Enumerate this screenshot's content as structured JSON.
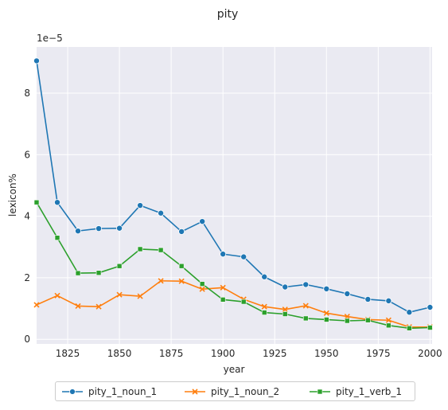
{
  "chart_data": {
    "type": "line",
    "title": "pity",
    "xlabel": "year",
    "ylabel": "lexicon%",
    "y_offset_label": "1e−5",
    "xlim": [
      1810,
      2001
    ],
    "ylim": [
      -0.15,
      9.5
    ],
    "y_scale_exponent": -5,
    "xticks": [
      1825,
      1850,
      1875,
      1900,
      1925,
      1950,
      1975,
      2000
    ],
    "yticks": [
      0,
      2,
      4,
      6,
      8
    ],
    "grid": true,
    "legend_position": "bottom-center",
    "x": [
      1810,
      1820,
      1830,
      1840,
      1850,
      1860,
      1870,
      1880,
      1890,
      1900,
      1910,
      1920,
      1930,
      1940,
      1950,
      1960,
      1970,
      1980,
      1990,
      2000
    ],
    "series": [
      {
        "name": "pity_1_noun_1",
        "color": "#1f77b4",
        "marker": "circle",
        "values": [
          9.05,
          4.45,
          3.52,
          3.6,
          3.61,
          4.35,
          4.1,
          3.5,
          3.83,
          2.77,
          2.68,
          2.03,
          1.7,
          1.78,
          1.64,
          1.48,
          1.3,
          1.25,
          0.88,
          1.04
        ]
      },
      {
        "name": "pity_1_noun_2",
        "color": "#ff7f0e",
        "marker": "x",
        "values": [
          1.12,
          1.42,
          1.08,
          1.06,
          1.45,
          1.4,
          1.9,
          1.89,
          1.63,
          1.68,
          1.3,
          1.06,
          0.97,
          1.09,
          0.85,
          0.74,
          0.64,
          0.62,
          0.4,
          0.4
        ]
      },
      {
        "name": "pity_1_verb_1",
        "color": "#2ca02c",
        "marker": "square",
        "values": [
          4.45,
          3.3,
          2.15,
          2.16,
          2.38,
          2.93,
          2.9,
          2.38,
          1.8,
          1.29,
          1.22,
          0.87,
          0.82,
          0.68,
          0.64,
          0.6,
          0.62,
          0.45,
          0.36,
          0.38
        ]
      }
    ]
  }
}
